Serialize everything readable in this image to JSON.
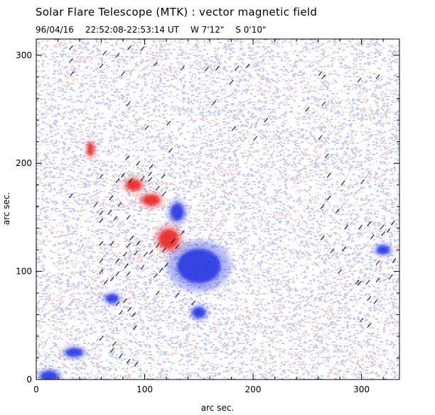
{
  "header": {
    "title": "Solar Flare Telescope (MTK) : vector magnetic field",
    "date": "96/04/16",
    "time_range": "22:52:08-22:53:14 UT",
    "longitude": "W 7'12\"",
    "latitude": "S 0'10\""
  },
  "chart_data": {
    "type": "heatmap",
    "title": "Solar Flare Telescope (MTK) : vector magnetic field",
    "xlabel": "arc sec.",
    "ylabel": "arc sec.",
    "xlim": [
      0,
      335
    ],
    "ylim": [
      0,
      315
    ],
    "x_ticks": [
      0,
      100,
      200,
      300
    ],
    "y_ticks": [
      0,
      100,
      200,
      300
    ],
    "colors": {
      "positive": "#e82020",
      "negative": "#2030e0",
      "background": "#ffffff",
      "vector": "#000000"
    },
    "features": [
      {
        "name": "negative-polarity-spot",
        "polarity": "negative",
        "x": 150,
        "y": 105,
        "rx": 20,
        "ry": 16
      },
      {
        "name": "negative-small-spot",
        "polarity": "negative",
        "x": 150,
        "y": 62,
        "rx": 6,
        "ry": 5
      },
      {
        "name": "positive-polarity-spot",
        "polarity": "positive",
        "x": 122,
        "y": 130,
        "rx": 9,
        "ry": 9
      },
      {
        "name": "positive-elongated-1",
        "polarity": "positive",
        "x": 90,
        "y": 180,
        "rx": 7,
        "ry": 5
      },
      {
        "name": "positive-elongated-2",
        "polarity": "positive",
        "x": 106,
        "y": 166,
        "rx": 8,
        "ry": 5
      },
      {
        "name": "positive-small-left",
        "polarity": "positive",
        "x": 50,
        "y": 213,
        "rx": 3,
        "ry": 6
      },
      {
        "name": "negative-blob-bottom-left",
        "polarity": "negative",
        "x": 35,
        "y": 25,
        "rx": 8,
        "ry": 4
      },
      {
        "name": "negative-blob-corner",
        "polarity": "negative",
        "x": 12,
        "y": 3,
        "rx": 8,
        "ry": 5
      },
      {
        "name": "negative-blob-right",
        "polarity": "negative",
        "x": 320,
        "y": 120,
        "rx": 6,
        "ry": 4
      },
      {
        "name": "negative-blob-mid",
        "polarity": "negative",
        "x": 130,
        "y": 155,
        "rx": 6,
        "ry": 8
      },
      {
        "name": "negative-blob-lower",
        "polarity": "negative",
        "x": 70,
        "y": 75,
        "rx": 6,
        "ry": 4
      }
    ],
    "vectors": [
      [
        32,
        307
      ],
      [
        32,
        295
      ],
      [
        63,
        302
      ],
      [
        75,
        300
      ],
      [
        86,
        307
      ],
      [
        98,
        306
      ],
      [
        33,
        283
      ],
      [
        60,
        290
      ],
      [
        80,
        283
      ],
      [
        110,
        292
      ],
      [
        135,
        288
      ],
      [
        157,
        287
      ],
      [
        167,
        288
      ],
      [
        195,
        290
      ],
      [
        262,
        283
      ],
      [
        265,
        280
      ],
      [
        185,
        288
      ],
      [
        180,
        275
      ],
      [
        85,
        255
      ],
      [
        122,
        237
      ],
      [
        164,
        256
      ],
      [
        182,
        232
      ],
      [
        212,
        240
      ],
      [
        250,
        250
      ],
      [
        265,
        255
      ],
      [
        298,
        277
      ],
      [
        315,
        280
      ],
      [
        102,
        233
      ],
      [
        84,
        205
      ],
      [
        124,
        212
      ],
      [
        94,
        200
      ],
      [
        106,
        197
      ],
      [
        105,
        190
      ],
      [
        117,
        188
      ],
      [
        202,
        223
      ],
      [
        262,
        224
      ],
      [
        268,
        207
      ],
      [
        60,
        188
      ],
      [
        80,
        189
      ],
      [
        75,
        184
      ],
      [
        87,
        184
      ],
      [
        98,
        186
      ],
      [
        105,
        185
      ],
      [
        32,
        170
      ],
      [
        55,
        162
      ],
      [
        60,
        154
      ],
      [
        60,
        147
      ],
      [
        69,
        168
      ],
      [
        68,
        155
      ],
      [
        73,
        149
      ],
      [
        77,
        162
      ],
      [
        85,
        150
      ],
      [
        112,
        177
      ],
      [
        118,
        172
      ],
      [
        270,
        189
      ],
      [
        283,
        182
      ],
      [
        301,
        183
      ],
      [
        270,
        168
      ],
      [
        264,
        160
      ],
      [
        278,
        156
      ],
      [
        286,
        141
      ],
      [
        299,
        141
      ],
      [
        307,
        144
      ],
      [
        319,
        141
      ],
      [
        325,
        138
      ],
      [
        60,
        126
      ],
      [
        60,
        110
      ],
      [
        70,
        126
      ],
      [
        75,
        110
      ],
      [
        82,
        116
      ],
      [
        85,
        124
      ],
      [
        88,
        131
      ],
      [
        92,
        117
      ],
      [
        94,
        126
      ],
      [
        101,
        116
      ],
      [
        106,
        118
      ],
      [
        112,
        124
      ],
      [
        118,
        120
      ],
      [
        126,
        128
      ],
      [
        130,
        123
      ],
      [
        135,
        136
      ],
      [
        264,
        131
      ],
      [
        273,
        119
      ],
      [
        284,
        121
      ],
      [
        280,
        100
      ],
      [
        310,
        132
      ],
      [
        320,
        135
      ],
      [
        329,
        145
      ],
      [
        338,
        140
      ],
      [
        60,
        100
      ],
      [
        64,
        90
      ],
      [
        70,
        93
      ],
      [
        75,
        98
      ],
      [
        83,
        105
      ],
      [
        85,
        98
      ],
      [
        98,
        104
      ],
      [
        110,
        96
      ],
      [
        115,
        101
      ],
      [
        120,
        106
      ],
      [
        315,
        108
      ],
      [
        330,
        110
      ],
      [
        296,
        90
      ],
      [
        298,
        89
      ],
      [
        306,
        90
      ],
      [
        315,
        92
      ],
      [
        327,
        95
      ],
      [
        307,
        75
      ],
      [
        313,
        72
      ],
      [
        75,
        70
      ],
      [
        78,
        62
      ],
      [
        82,
        73
      ],
      [
        86,
        65
      ],
      [
        90,
        60
      ],
      [
        91,
        48
      ],
      [
        112,
        80
      ],
      [
        130,
        78
      ],
      [
        145,
        71
      ],
      [
        300,
        55
      ],
      [
        307,
        50
      ],
      [
        60,
        38
      ],
      [
        70,
        27
      ],
      [
        72,
        33
      ],
      [
        78,
        22
      ],
      [
        85,
        17
      ],
      [
        92,
        14
      ]
    ]
  }
}
